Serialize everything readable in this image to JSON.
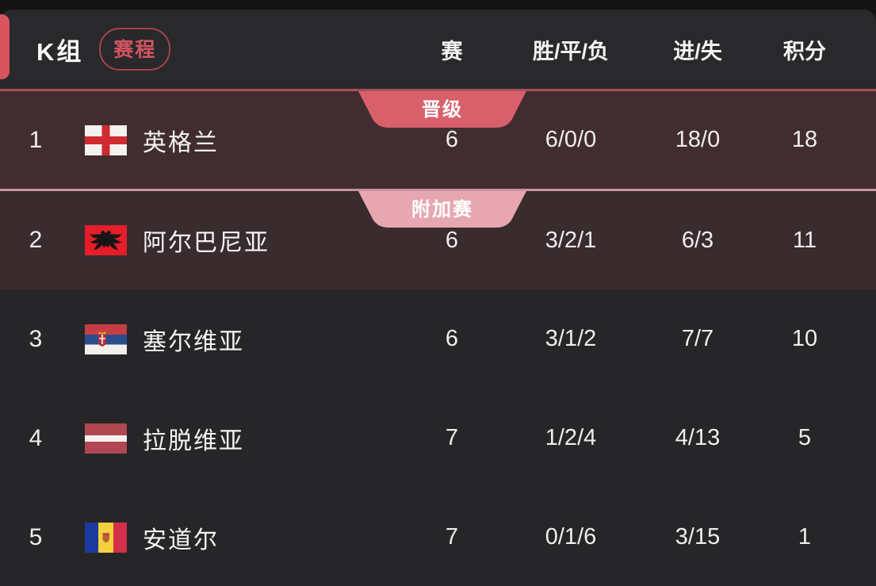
{
  "header": {
    "group_label": "K组",
    "schedule_button": "赛程",
    "columns": [
      "赛",
      "胜/平/负",
      "进/失",
      "积分"
    ]
  },
  "table": {
    "rows": [
      {
        "rank": "1",
        "team": "英格兰",
        "flag": "england",
        "badge": {
          "label": "晋级",
          "type": "qualified"
        },
        "played": "6",
        "wdl": "6/0/0",
        "goals": "18/0",
        "points": "18"
      },
      {
        "rank": "2",
        "team": "阿尔巴尼亚",
        "flag": "albania",
        "badge": {
          "label": "附加赛",
          "type": "playoff"
        },
        "played": "6",
        "wdl": "3/2/1",
        "goals": "6/3",
        "points": "11"
      },
      {
        "rank": "3",
        "team": "塞尔维亚",
        "flag": "serbia",
        "badge": null,
        "played": "6",
        "wdl": "3/1/2",
        "goals": "7/7",
        "points": "10"
      },
      {
        "rank": "4",
        "team": "拉脱维亚",
        "flag": "latvia",
        "badge": null,
        "played": "7",
        "wdl": "1/2/4",
        "goals": "4/13",
        "points": "5"
      },
      {
        "rank": "5",
        "team": "安道尔",
        "flag": "andorra",
        "badge": null,
        "played": "7",
        "wdl": "0/1/6",
        "goals": "3/15",
        "points": "1"
      }
    ]
  },
  "colors": {
    "accent_red": "#d8545f",
    "badge_qualified": "#d8606b",
    "badge_playoff": "#e6a7b1",
    "separator_qualified": "#a9505c",
    "separator_playoff": "#c9929d",
    "row_highlight_bg_1": "#412d30",
    "row_highlight_bg_2": "#392b2e",
    "header_bg": "#29282b",
    "body_bg": "#262628",
    "pill_border": "#a4434d",
    "pill_text": "#d25460"
  }
}
